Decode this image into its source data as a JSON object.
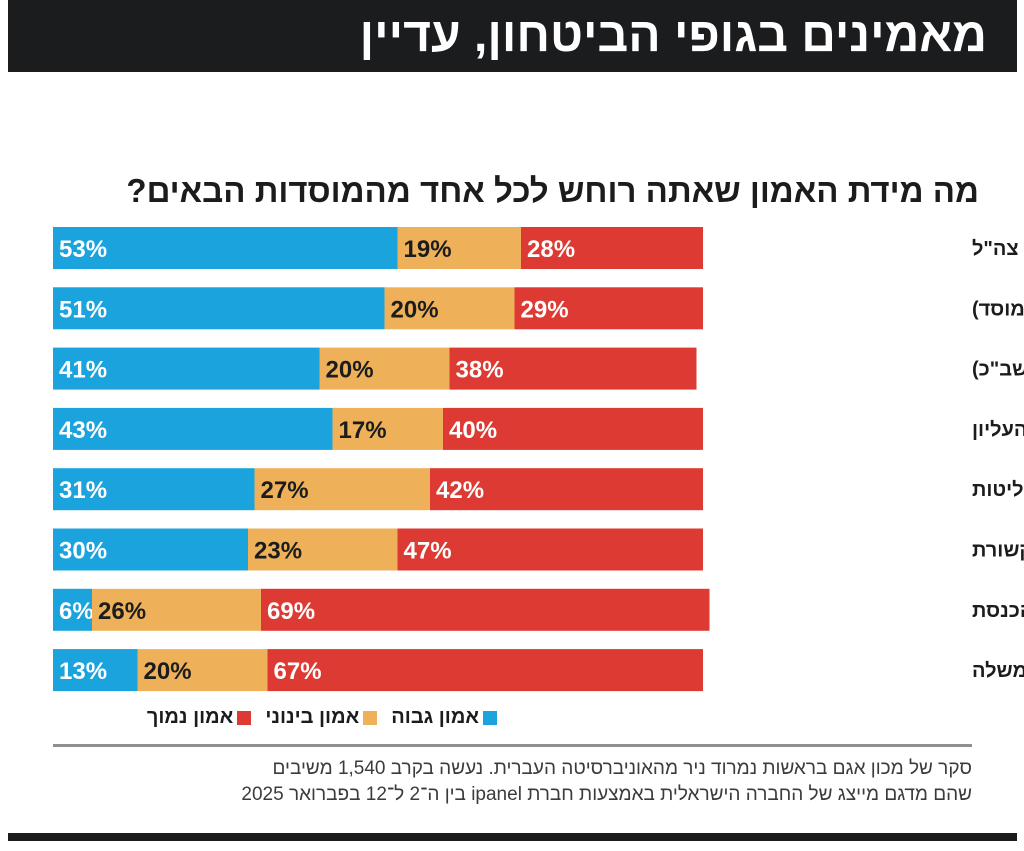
{
  "header": {
    "title": "מאמינים בגופי הביטחון, עדיין"
  },
  "colors": {
    "high": "#1ba3dd",
    "mid": "#eeb159",
    "low": "#dc3a33",
    "dark": "#1b1c1e",
    "labelDark": "#1b1c1e",
    "labelLight": "#ffffff"
  },
  "chart_data": {
    "type": "bar",
    "orientation": "horizontal-stacked-100",
    "title": "מה מידת האמון שאתה רוחש לכל אחד מהמוסדות הבאים?",
    "categories": [
      "צה\"ל",
      "המוסד למודיעין (המוסד)",
      "שירות הביטחון הכללי (שב\"כ)",
      "בית המשפט העליון",
      "הפרקליטות",
      "התקשורת",
      "הכנסת",
      "הממשלה"
    ],
    "series": [
      {
        "name": "אמון גבוה",
        "values": [
          53,
          51,
          41,
          43,
          31,
          30,
          6,
          13
        ]
      },
      {
        "name": "אמון בינוני",
        "values": [
          19,
          20,
          20,
          17,
          27,
          23,
          26,
          20
        ]
      },
      {
        "name": "אמון נמוך",
        "values": [
          28,
          29,
          38,
          40,
          42,
          47,
          69,
          67
        ]
      }
    ],
    "value_suffix": "%",
    "xlim": [
      0,
      100
    ],
    "legend": "bottom"
  },
  "legend": {
    "high": "אמון גבוה",
    "mid": "אמון בינוני",
    "low": "אמון נמוך"
  },
  "footnote": {
    "line1": "סקר של מכון אגם בראשות נמרוד ניר מהאוניברסיטה העברית. נעשה בקרב 1,540 משיבים",
    "line2": "שהם מדגם מייצג של החברה הישראלית באמצעות חברת ipanel בין ה־2 ל־12 בפברואר 2025"
  }
}
